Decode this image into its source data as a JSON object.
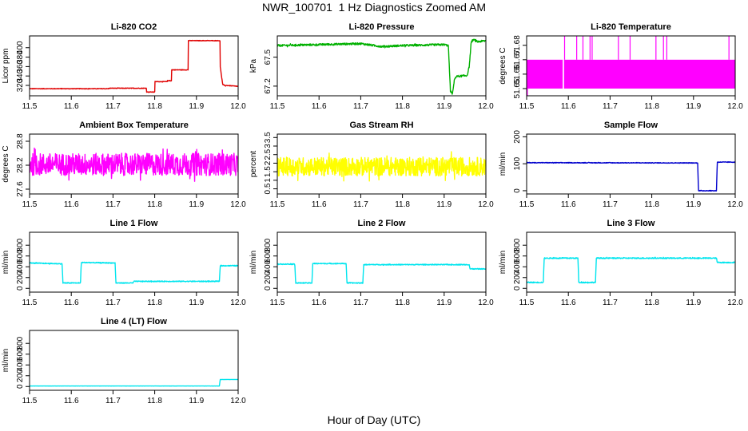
{
  "figure": {
    "title": "NWR_100701  1 Hz Diagnostics Zoomed AM",
    "xlabel": "Hour of Day (UTC)"
  },
  "chart_data": [
    {
      "type": "line",
      "title": "Li-820 CO2",
      "ylabel": "Licor ppm",
      "color": "#e00000",
      "xlim": [
        11.5,
        12.0
      ],
      "ylim": [
        298,
        425
      ],
      "xticks": [
        11.5,
        11.6,
        11.7,
        11.8,
        11.9,
        12.0
      ],
      "xticklabels": [
        "11.5",
        "11.6",
        "11.7",
        "11.8",
        "11.9",
        "12.0"
      ],
      "yticks": [
        320,
        340,
        360,
        380,
        400
      ],
      "yticklabels": [
        "320",
        "340",
        "360",
        "380",
        "400"
      ],
      "noise": 0.6,
      "x": [
        11.5,
        11.69,
        11.69,
        11.78,
        11.78,
        11.8,
        11.8,
        11.83,
        11.83,
        11.84,
        11.84,
        11.88,
        11.88,
        11.957,
        11.957,
        11.963,
        11.963,
        11.97,
        11.97,
        12.0
      ],
      "y": [
        313,
        313,
        314,
        314,
        306,
        306,
        328,
        328,
        330,
        330,
        353,
        353,
        415,
        415,
        360,
        322,
        322,
        319,
        320,
        318
      ]
    },
    {
      "type": "line",
      "title": "Li-820 Pressure",
      "ylabel": "kPa",
      "color": "#00b000",
      "xlim": [
        11.5,
        12.0
      ],
      "ylim": [
        67.1,
        67.72
      ],
      "xticks": [
        11.5,
        11.6,
        11.7,
        11.8,
        11.9,
        12.0
      ],
      "xticklabels": [
        "11.5",
        "11.6",
        "11.7",
        "11.8",
        "11.9",
        "12.0"
      ],
      "yticks": [
        67.2,
        67.5
      ],
      "yticklabels": [
        "67.2",
        "67.5"
      ],
      "noise": 0.01,
      "x": [
        11.5,
        11.6,
        11.7,
        11.75,
        11.8,
        11.9,
        11.91,
        11.915,
        11.92,
        11.925,
        11.93,
        11.955,
        11.96,
        11.965,
        11.97,
        11.98,
        12.0
      ],
      "y": [
        67.62,
        67.63,
        67.64,
        67.61,
        67.62,
        67.63,
        67.62,
        67.15,
        67.12,
        67.28,
        67.3,
        67.31,
        67.4,
        67.66,
        67.68,
        67.66,
        67.67
      ]
    },
    {
      "type": "line",
      "title": "Li-820 Temperature",
      "ylabel": "degrees C",
      "color": "#ff00ff",
      "xlim": [
        11.5,
        12.0
      ],
      "ylim": [
        51.645,
        51.6865
      ],
      "xticks": [
        11.5,
        11.6,
        11.7,
        11.8,
        11.9,
        12.0
      ],
      "xticklabels": [
        "11.5",
        "11.6",
        "11.7",
        "11.8",
        "11.9",
        "12.0"
      ],
      "yticks": [
        51.65,
        51.66,
        51.67,
        51.68
      ],
      "yticklabels": [
        "51.65",
        "51.66",
        "51.67",
        "51.68"
      ],
      "band_low": 51.65,
      "band_high": 51.67,
      "band_gap": 11.588,
      "spikes": [
        11.591,
        11.62,
        11.635,
        11.652,
        11.657,
        11.72,
        11.748,
        11.81,
        11.828,
        11.836,
        11.985
      ]
    },
    {
      "type": "line",
      "title": "Ambient Box Temperature",
      "ylabel": "degrees C",
      "color": "#ff00ff",
      "xlim": [
        11.5,
        12.0
      ],
      "ylim": [
        27.48,
        28.98
      ],
      "xticks": [
        11.5,
        11.6,
        11.7,
        11.8,
        11.9,
        12.0
      ],
      "xticklabels": [
        "11.5",
        "11.6",
        "11.7",
        "11.8",
        "11.9",
        "12.0"
      ],
      "yticks": [
        27.6,
        28.2,
        28.8
      ],
      "yticklabels": [
        "27.6",
        "28.2",
        "28.8"
      ],
      "noise": 0.28,
      "x": [
        11.5,
        12.0
      ],
      "y": [
        28.22,
        28.22
      ]
    },
    {
      "type": "line",
      "title": "Gas Stream RH",
      "ylabel": "percent",
      "color": "#ffff00",
      "xlim": [
        11.5,
        12.0
      ],
      "ylim": [
        0.2,
        3.7
      ],
      "xticks": [
        11.5,
        11.6,
        11.7,
        11.8,
        11.9,
        12.0
      ],
      "xticklabels": [
        "11.5",
        "11.6",
        "11.7",
        "11.8",
        "11.9",
        "12.0"
      ],
      "yticks": [
        0.5,
        1.0,
        1.5,
        2.0,
        2.5,
        3.0,
        3.5
      ],
      "yticklabels": [
        "0.5",
        "1",
        "1.5",
        "2",
        "2.5",
        "3",
        "3.5"
      ],
      "noise": 0.55,
      "x": [
        11.5,
        12.0
      ],
      "y": [
        1.8,
        1.8
      ]
    },
    {
      "type": "line",
      "title": "Sample Flow",
      "ylabel": "ml/min",
      "color": "#0000cc",
      "xlim": [
        11.5,
        12.0
      ],
      "ylim": [
        -12,
        210
      ],
      "xticks": [
        11.5,
        11.6,
        11.7,
        11.8,
        11.9,
        12.0
      ],
      "xticklabels": [
        "11.5",
        "11.6",
        "11.7",
        "11.8",
        "11.9",
        "12.0"
      ],
      "yticks": [
        0,
        100,
        200
      ],
      "yticklabels": [
        "0",
        "100",
        "200"
      ],
      "noise": 1.2,
      "x": [
        11.5,
        11.91,
        11.912,
        11.955,
        11.957,
        12.0
      ],
      "y": [
        104,
        103,
        0,
        0,
        106,
        106
      ]
    },
    {
      "type": "line",
      "title": "Line 1 Flow",
      "ylabel": "ml/min",
      "color": "#00e5ee",
      "xlim": [
        11.5,
        12.0
      ],
      "ylim": [
        -70,
        1040
      ],
      "xticks": [
        11.5,
        11.6,
        11.7,
        11.8,
        11.9,
        12.0
      ],
      "xticklabels": [
        "11.5",
        "11.6",
        "11.7",
        "11.8",
        "11.9",
        "12.0"
      ],
      "yticks": [
        0,
        200,
        400,
        600,
        800
      ],
      "yticklabels": [
        "0",
        "200",
        "400",
        "600",
        "800"
      ],
      "noise": 8,
      "x": [
        11.5,
        11.578,
        11.58,
        11.622,
        11.624,
        11.705,
        11.707,
        11.748,
        11.75,
        11.955,
        11.957,
        12.0
      ],
      "y": [
        470,
        455,
        100,
        100,
        480,
        470,
        100,
        100,
        130,
        130,
        420,
        420
      ]
    },
    {
      "type": "line",
      "title": "Line 2 Flow",
      "ylabel": "ml/min",
      "color": "#00e5ee",
      "xlim": [
        11.5,
        12.0
      ],
      "ylim": [
        -70,
        1040
      ],
      "xticks": [
        11.5,
        11.6,
        11.7,
        11.8,
        11.9,
        12.0
      ],
      "xticklabels": [
        "11.5",
        "11.6",
        "11.7",
        "11.8",
        "11.9",
        "12.0"
      ],
      "yticks": [
        0,
        200,
        400,
        600,
        800
      ],
      "yticklabels": [
        "0",
        "200",
        "400",
        "600",
        "800"
      ],
      "noise": 8,
      "x": [
        11.5,
        11.542,
        11.544,
        11.583,
        11.585,
        11.665,
        11.667,
        11.705,
        11.707,
        11.96,
        11.962,
        12.0
      ],
      "y": [
        450,
        450,
        100,
        100,
        460,
        460,
        100,
        100,
        440,
        440,
        360,
        360
      ]
    },
    {
      "type": "line",
      "title": "Line 3 Flow",
      "ylabel": "ml/min",
      "color": "#00e5ee",
      "xlim": [
        11.5,
        12.0
      ],
      "ylim": [
        -70,
        1040
      ],
      "xticks": [
        11.5,
        11.6,
        11.7,
        11.8,
        11.9,
        12.0
      ],
      "xticklabels": [
        "11.5",
        "11.6",
        "11.7",
        "11.8",
        "11.9",
        "12.0"
      ],
      "yticks": [
        0,
        200,
        400,
        600,
        800
      ],
      "yticklabels": [
        "0",
        "200",
        "400",
        "600",
        "800"
      ],
      "noise": 10,
      "x": [
        11.5,
        11.54,
        11.542,
        11.623,
        11.625,
        11.665,
        11.667,
        11.955,
        11.957,
        12.0
      ],
      "y": [
        110,
        110,
        560,
        560,
        110,
        110,
        560,
        560,
        480,
        480
      ]
    },
    {
      "type": "line",
      "title": "Line 4 (LT) Flow",
      "ylabel": "ml/min",
      "color": "#00e5ee",
      "xlim": [
        11.5,
        12.0
      ],
      "ylim": [
        -70,
        1040
      ],
      "xticks": [
        11.5,
        11.6,
        11.7,
        11.8,
        11.9,
        12.0
      ],
      "xticklabels": [
        "11.5",
        "11.6",
        "11.7",
        "11.8",
        "11.9",
        "12.0"
      ],
      "yticks": [
        0,
        200,
        400,
        600,
        800
      ],
      "yticklabels": [
        "0",
        "200",
        "400",
        "600",
        "800"
      ],
      "noise": 1,
      "x": [
        11.5,
        11.955,
        11.957,
        12.0
      ],
      "y": [
        10,
        10,
        130,
        130
      ]
    }
  ]
}
